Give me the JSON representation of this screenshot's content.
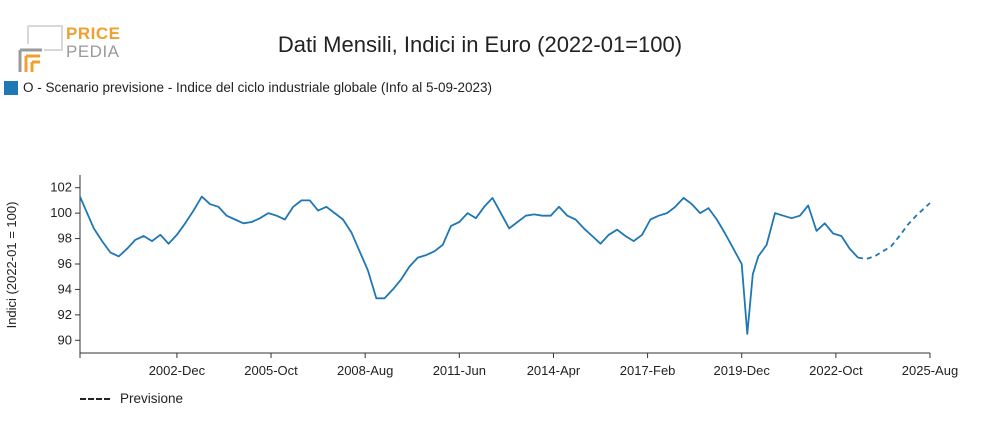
{
  "brand": {
    "line1": "PRICE",
    "line2": "PEDIA",
    "color_primary": "#f0a030",
    "color_secondary": "#9a9a9a"
  },
  "chart_data": {
    "type": "line",
    "title": "Dati Mensili, Indici in Euro (2022-01=100)",
    "ylabel": "Indici (2022-01 = 100)",
    "ylim": [
      89,
      103
    ],
    "yticks": [
      90,
      92,
      94,
      96,
      98,
      100,
      102
    ],
    "xlim": [
      "2000-01",
      "2025-08"
    ],
    "xticks": [
      "2002-Dec",
      "2005-Oct",
      "2008-Aug",
      "2011-Jun",
      "2014-Apr",
      "2017-Feb",
      "2019-Dec",
      "2022-Oct",
      "2025-Aug"
    ],
    "grid": false,
    "legend": "top-left",
    "series": [
      {
        "name": "O - Scenario previsione - Indice del ciclo industriale globale (Info al 5-09-2023)",
        "color": "#1f77b4",
        "style": "solid",
        "x": [
          "2000-01",
          "2000-03",
          "2000-06",
          "2000-09",
          "2000-12",
          "2001-03",
          "2001-06",
          "2001-09",
          "2001-12",
          "2002-03",
          "2002-06",
          "2002-09",
          "2002-12",
          "2003-03",
          "2003-06",
          "2003-09",
          "2003-12",
          "2004-03",
          "2004-06",
          "2004-09",
          "2004-12",
          "2005-03",
          "2005-06",
          "2005-09",
          "2005-12",
          "2006-03",
          "2006-06",
          "2006-09",
          "2006-12",
          "2007-03",
          "2007-06",
          "2007-09",
          "2007-12",
          "2008-03",
          "2008-06",
          "2008-09",
          "2008-12",
          "2009-03",
          "2009-06",
          "2009-09",
          "2009-12",
          "2010-03",
          "2010-06",
          "2010-09",
          "2010-12",
          "2011-03",
          "2011-06",
          "2011-09",
          "2011-12",
          "2012-03",
          "2012-06",
          "2012-09",
          "2012-12",
          "2013-03",
          "2013-06",
          "2013-09",
          "2013-12",
          "2014-03",
          "2014-06",
          "2014-09",
          "2014-12",
          "2015-03",
          "2015-06",
          "2015-09",
          "2015-12",
          "2016-03",
          "2016-06",
          "2016-09",
          "2016-12",
          "2017-03",
          "2017-06",
          "2017-09",
          "2017-12",
          "2018-03",
          "2018-06",
          "2018-09",
          "2018-12",
          "2019-03",
          "2019-06",
          "2019-09",
          "2019-12",
          "2020-02",
          "2020-04",
          "2020-06",
          "2020-09",
          "2020-12",
          "2021-03",
          "2021-06",
          "2021-09",
          "2021-12",
          "2022-03",
          "2022-06",
          "2022-09",
          "2022-12",
          "2023-03",
          "2023-06"
        ],
        "values": [
          101.3,
          100.3,
          98.8,
          97.8,
          96.9,
          96.6,
          97.2,
          97.9,
          98.2,
          97.8,
          98.3,
          97.6,
          98.3,
          99.2,
          100.2,
          101.3,
          100.7,
          100.5,
          99.8,
          99.5,
          99.2,
          99.3,
          99.6,
          100.0,
          99.8,
          99.5,
          100.5,
          101.0,
          101.0,
          100.2,
          100.5,
          100.0,
          99.5,
          98.5,
          97.0,
          95.5,
          93.3,
          93.3,
          94.0,
          94.8,
          95.8,
          96.5,
          96.7,
          97.0,
          97.5,
          99.0,
          99.3,
          100.0,
          99.6,
          100.5,
          101.2,
          100.0,
          98.8,
          99.3,
          99.8,
          99.9,
          99.8,
          99.8,
          100.5,
          99.8,
          99.5,
          98.8,
          98.2,
          97.6,
          98.3,
          98.7,
          98.2,
          97.8,
          98.3,
          99.5,
          99.8,
          100.0,
          100.5,
          101.2,
          100.7,
          100.0,
          100.4,
          99.5,
          98.4,
          97.2,
          96.0,
          90.5,
          95.2,
          96.6,
          97.5,
          100.0,
          99.8,
          99.6,
          99.8,
          100.6,
          98.6,
          99.2,
          98.4,
          98.2,
          97.2,
          96.5
        ]
      },
      {
        "name": "Previsione",
        "color": "#1f77b4",
        "style": "dashed",
        "x": [
          "2023-06",
          "2023-09",
          "2023-12",
          "2024-03",
          "2024-06",
          "2024-09",
          "2024-12",
          "2025-03",
          "2025-08"
        ],
        "values": [
          96.5,
          96.4,
          96.6,
          97.0,
          97.4,
          98.2,
          99.1,
          99.8,
          100.8
        ]
      }
    ]
  }
}
